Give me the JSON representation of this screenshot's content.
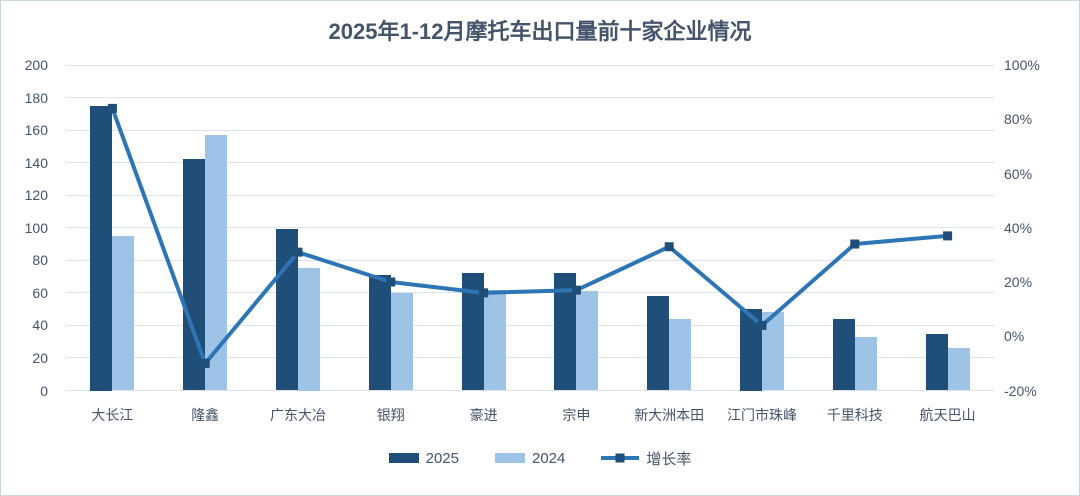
{
  "chart_data": {
    "type": "bar",
    "combo": "bar+line",
    "title": "2025年1-12月摩托车出口量前十家企业情况",
    "categories": [
      "大长江",
      "隆鑫",
      "广东大冶",
      "银翔",
      "豪进",
      "宗申",
      "新大洲本田",
      "江门市珠峰",
      "千里科技",
      "航天巴山"
    ],
    "series": [
      {
        "name": "2025",
        "type": "bar",
        "axis": "left",
        "color": "#1F4E79",
        "values": [
          175,
          142,
          99,
          71,
          72,
          72,
          58,
          50,
          44,
          35
        ]
      },
      {
        "name": "2024",
        "type": "bar",
        "axis": "left",
        "color": "#9DC3E6",
        "values": [
          95,
          157,
          75,
          60,
          62,
          61,
          44,
          48,
          33,
          26
        ]
      },
      {
        "name": "增长率",
        "type": "line",
        "axis": "right",
        "color": "#2E75B6",
        "marker_color": "#1F4E79",
        "unit": "%",
        "values": [
          84,
          -10,
          31,
          20,
          16,
          17,
          33,
          4,
          34,
          37
        ]
      }
    ],
    "left_axis": {
      "min": 0,
      "max": 200,
      "step": 20,
      "ticks": [
        0,
        20,
        40,
        60,
        80,
        100,
        120,
        140,
        160,
        180,
        200
      ],
      "tick_labels": [
        "0",
        "20",
        "40",
        "60",
        "80",
        "100",
        "120",
        "140",
        "160",
        "180",
        "200"
      ]
    },
    "right_axis": {
      "min": -20,
      "max": 100,
      "step": 20,
      "ticks": [
        -20,
        0,
        20,
        40,
        60,
        80,
        100
      ],
      "tick_labels": [
        "-20%",
        "0%",
        "20%",
        "40%",
        "60%",
        "80%",
        "100%"
      ]
    },
    "grid": true,
    "legend_position": "bottom"
  },
  "colors": {
    "title_text": "#44546A",
    "axis_text": "#44546A",
    "gridline": "#DBE3EF",
    "background": "#FFFFFF"
  }
}
